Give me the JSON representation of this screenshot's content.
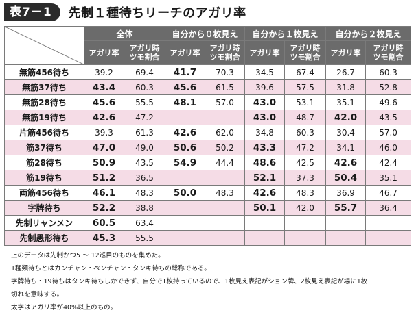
{
  "header": {
    "badge": "表7－1",
    "title": "先制１種待ちリーチのアガリ率"
  },
  "table": {
    "groups": [
      "全体",
      "自分から０枚見え",
      "自分から１枚見え",
      "自分から２枚見え"
    ],
    "subheaders": [
      [
        "アガリ率",
        ""
      ],
      [
        "アガリ時",
        "ツモ割合"
      ]
    ],
    "rows": [
      {
        "label": "無筋456待ち",
        "values": [
          "39.2",
          "69.4",
          "41.7",
          "70.3",
          "34.5",
          "67.4",
          "26.7",
          "60.3"
        ]
      },
      {
        "label": "無筋37待ち",
        "values": [
          "43.4",
          "60.3",
          "45.6",
          "61.5",
          "39.6",
          "57.5",
          "31.8",
          "52.8"
        ]
      },
      {
        "label": "無筋28待ち",
        "values": [
          "45.6",
          "55.5",
          "48.1",
          "57.0",
          "43.0",
          "53.1",
          "35.1",
          "49.6"
        ]
      },
      {
        "label": "無筋19待ち",
        "values": [
          "42.6",
          "47.2",
          "",
          "",
          "43.0",
          "48.7",
          "42.0",
          "43.5"
        ]
      },
      {
        "label": "片筋456待ち",
        "values": [
          "39.3",
          "61.3",
          "42.6",
          "62.0",
          "34.8",
          "60.3",
          "30.4",
          "57.0"
        ]
      },
      {
        "label": "筋37待ち",
        "values": [
          "47.0",
          "49.0",
          "50.6",
          "50.2",
          "43.3",
          "47.2",
          "34.1",
          "46.0"
        ]
      },
      {
        "label": "筋28待ち",
        "values": [
          "50.9",
          "43.5",
          "54.9",
          "44.4",
          "48.6",
          "42.5",
          "42.6",
          "42.4"
        ]
      },
      {
        "label": "筋19待ち",
        "values": [
          "51.2",
          "36.5",
          "",
          "",
          "52.1",
          "37.3",
          "50.4",
          "35.1"
        ]
      },
      {
        "label": "両筋456待ち",
        "values": [
          "46.1",
          "48.3",
          "50.0",
          "48.3",
          "42.6",
          "48.3",
          "36.9",
          "46.7"
        ]
      },
      {
        "label": "字牌待ち",
        "values": [
          "52.2",
          "38.8",
          "",
          "",
          "50.1",
          "42.0",
          "55.7",
          "36.4"
        ]
      },
      {
        "label": "先制リャンメン",
        "values": [
          "60.5",
          "63.4",
          "",
          "",
          "",
          "",
          "",
          ""
        ]
      },
      {
        "label": "先制愚形待ち",
        "values": [
          "45.3",
          "55.5",
          "",
          "",
          "",
          "",
          "",
          ""
        ]
      }
    ]
  },
  "notes": [
    "上のデータは先制かつ5 〜 12巡目のものを集めた。",
    "1種類待ちとはカンチャン・ペンチャン・タンキ待ちの総称である。",
    "字牌待ち・19待ちはタンキ待ちしかできず、自分で1枚持っているので、1枚見え表記がション牌、2枚見え表記が場に1枚",
    "切れを意味する。",
    "太字はアガリ率が40%以上のもの。"
  ]
}
